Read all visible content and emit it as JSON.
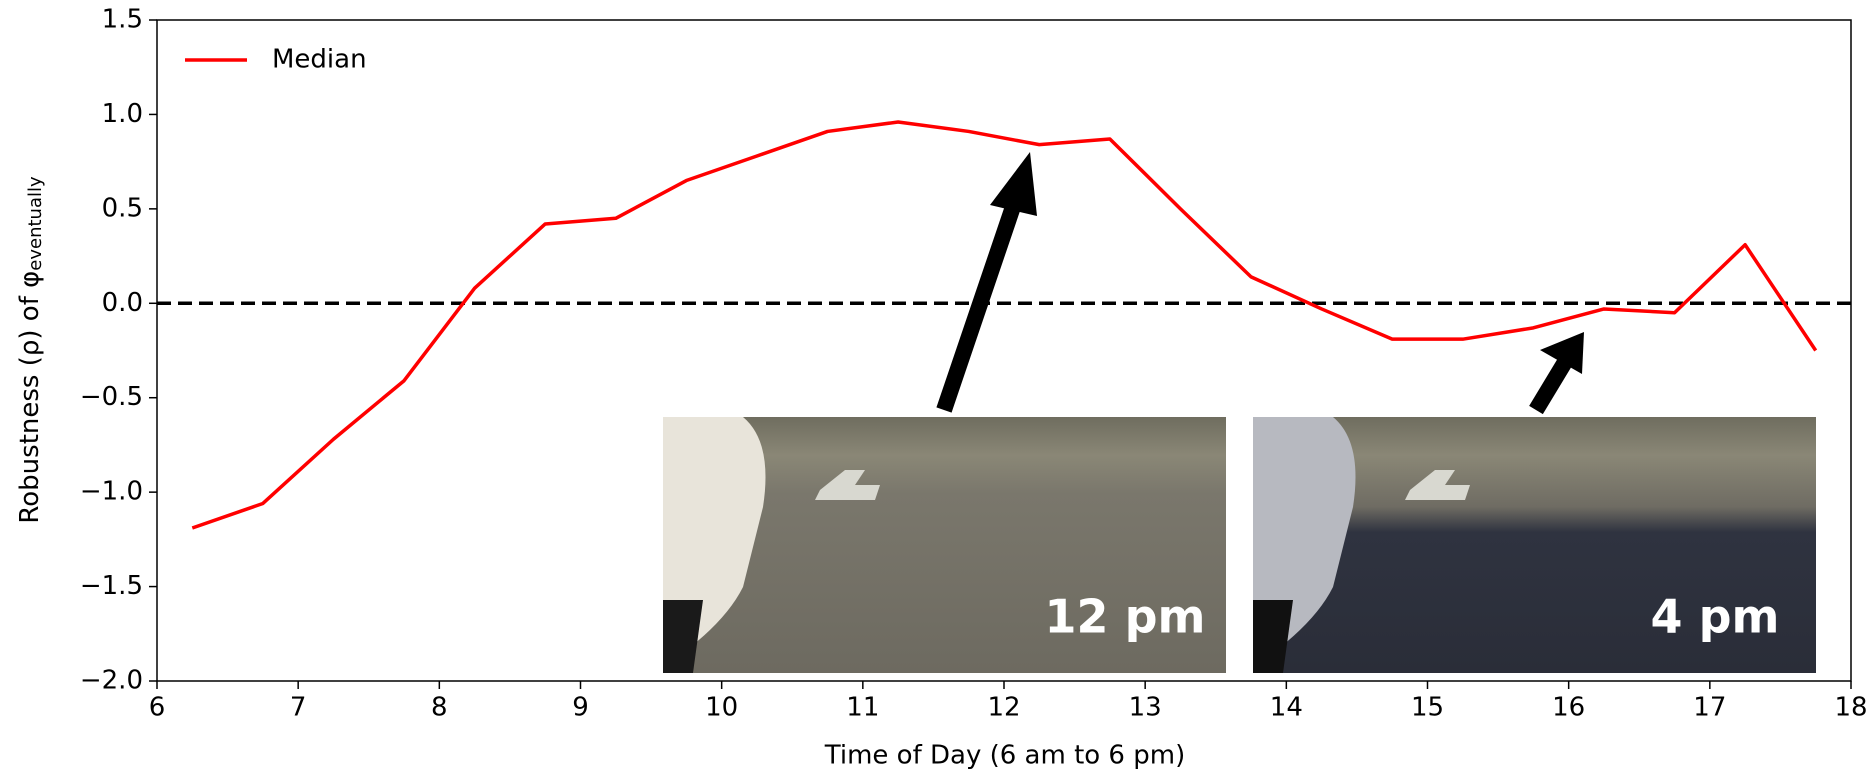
{
  "chart_data": {
    "type": "line",
    "x_label": "Time of Day (6 am to 6 pm)",
    "y_label": "Robustness (ρ) of φ",
    "y_label_subscript": "eventually",
    "x": [
      6.25,
      6.75,
      7.25,
      7.75,
      8.25,
      8.75,
      9.25,
      9.75,
      10.25,
      10.75,
      11.25,
      11.75,
      12.25,
      12.75,
      13.25,
      13.75,
      14.25,
      14.75,
      15.25,
      15.75,
      16.25,
      16.75,
      17.25,
      17.75
    ],
    "series": [
      {
        "name": "Median",
        "color": "#ff0000",
        "values": [
          -1.19,
          -1.06,
          -0.72,
          -0.41,
          0.08,
          0.42,
          0.45,
          0.65,
          0.78,
          0.91,
          0.96,
          0.91,
          0.84,
          0.87,
          0.5,
          0.14,
          -0.03,
          -0.19,
          -0.19,
          -0.13,
          -0.03,
          -0.05,
          0.31,
          -0.25
        ]
      }
    ],
    "hline": 0,
    "xlim": [
      6,
      18
    ],
    "ylim": [
      -2,
      1.5
    ],
    "xticks": [
      6,
      7,
      8,
      9,
      10,
      11,
      12,
      13,
      14,
      15,
      16,
      17,
      18
    ],
    "yticks": [
      {
        "value": -2,
        "label": "−2.0"
      },
      {
        "value": -1.5,
        "label": "−1.5"
      },
      {
        "value": -1,
        "label": "−1.0"
      },
      {
        "value": -0.5,
        "label": "−0.5"
      },
      {
        "value": 0,
        "label": "0.0"
      },
      0.5,
      {
        "value": 1,
        "label": "1.0"
      },
      1.5
    ],
    "legend": "upper left",
    "annotations": [
      "12 pm",
      "4 pm"
    ]
  }
}
